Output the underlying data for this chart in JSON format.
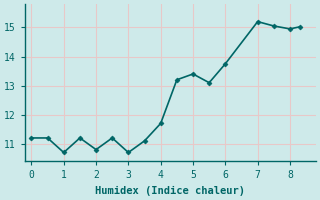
{
  "x": [
    0,
    0.5,
    1,
    1.5,
    2,
    2.5,
    3,
    3.5,
    4,
    4.5,
    5,
    5.5,
    6,
    7,
    7.5,
    8,
    8.3
  ],
  "y": [
    11.2,
    11.2,
    10.7,
    11.2,
    10.8,
    11.2,
    10.7,
    11.1,
    11.7,
    13.2,
    13.4,
    13.1,
    13.75,
    15.2,
    15.05,
    14.95,
    15.02
  ],
  "line_color": "#006666",
  "marker": "D",
  "marker_size": 2.5,
  "marker_color": "#006666",
  "background_color": "#ceeaea",
  "grid_color": "#b0d8d8",
  "xlabel": "Humidex (Indice chaleur)",
  "xlabel_fontsize": 7.5,
  "tick_fontsize": 7,
  "xlim": [
    -0.2,
    8.8
  ],
  "ylim": [
    10.4,
    15.8
  ],
  "yticks": [
    11,
    12,
    13,
    14,
    15
  ],
  "xticks": [
    0,
    1,
    2,
    3,
    4,
    5,
    6,
    7,
    8
  ],
  "spine_color": "#006666",
  "linewidth": 1.2
}
